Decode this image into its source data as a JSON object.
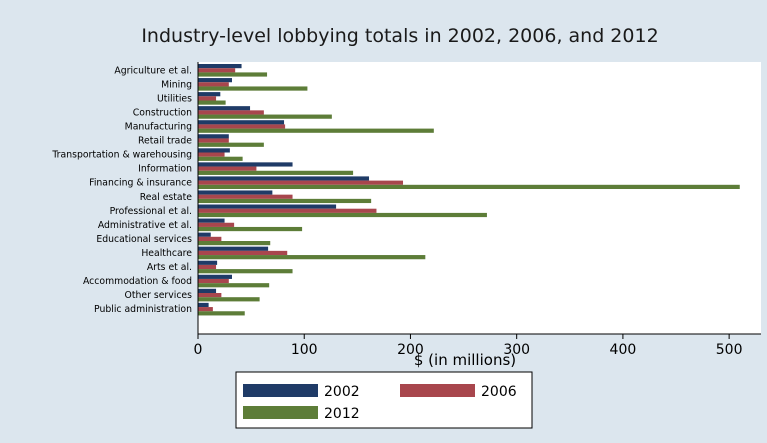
{
  "colors": {
    "outer_background": "#dce6ee",
    "plot_background": "#ffffff",
    "axis": "#000000",
    "series": [
      "#1f3b67",
      "#a8464d",
      "#5d7d38"
    ]
  },
  "chart_data": {
    "type": "bar",
    "orientation": "horizontal",
    "title": "Industry-level lobbying totals in 2002, 2006, and 2012",
    "xlabel": "$ (in millions)",
    "ylabel": "",
    "xlim": [
      0,
      530
    ],
    "xticks": [
      0,
      100,
      200,
      300,
      400,
      500
    ],
    "grid": false,
    "legend_position": "bottom",
    "categories": [
      "Agriculture et al.",
      "Mining",
      "Utilities",
      "Construction",
      "Manufacturing",
      "Retail trade",
      "Transportation & warehousing",
      "Information",
      "Financing & insurance",
      "Real estate",
      "Professional et al.",
      "Administrative et al.",
      "Educational services",
      "Healthcare",
      "Arts et al.",
      "Accommodation & food",
      "Other services",
      "Public administration"
    ],
    "series": [
      {
        "name": "2002",
        "values": [
          41,
          32,
          21,
          49,
          81,
          29,
          30,
          89,
          161,
          70,
          130,
          25,
          12,
          66,
          18,
          32,
          17,
          10
        ]
      },
      {
        "name": "2006",
        "values": [
          35,
          29,
          17,
          62,
          82,
          29,
          25,
          55,
          193,
          89,
          168,
          34,
          22,
          84,
          17,
          29,
          22,
          14
        ]
      },
      {
        "name": "2012",
        "values": [
          65,
          103,
          26,
          126,
          222,
          62,
          42,
          146,
          510,
          163,
          272,
          98,
          68,
          214,
          89,
          67,
          58,
          44
        ]
      }
    ]
  }
}
